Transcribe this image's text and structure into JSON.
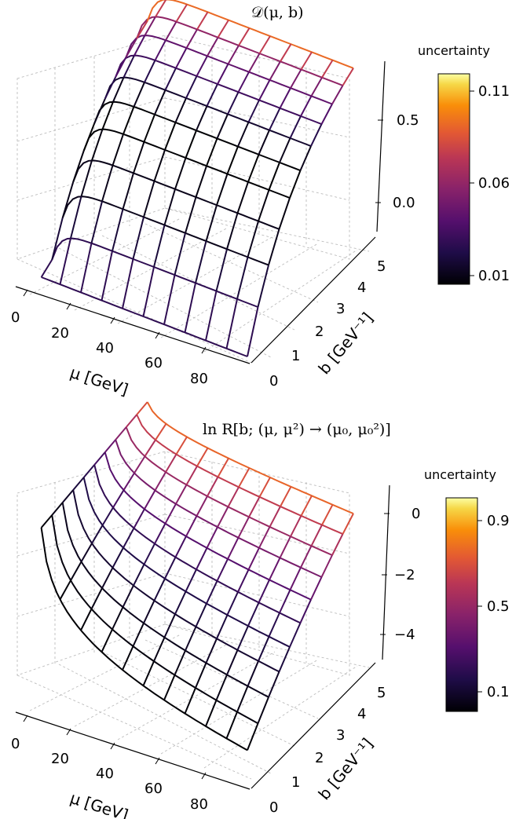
{
  "chart_data": [
    {
      "type": "surface",
      "title": "𝒟(μ, b)",
      "xlabel": "μ [GeV]",
      "ylabel": "b [GeV⁻¹]",
      "zlabel": "",
      "x_ticks": [
        "0",
        "20",
        "40",
        "60",
        "80"
      ],
      "y_ticks": [
        "0",
        "1",
        "2",
        "3",
        "4",
        "5"
      ],
      "z_ticks": [
        "0.0",
        "0.5"
      ],
      "xlim": [
        0,
        100
      ],
      "ylim": [
        0,
        5
      ],
      "grid": true,
      "colormap": "inferno",
      "colorbar": {
        "label": "uncertainty",
        "ticks": [
          "0.01",
          "0.06",
          "0.11"
        ],
        "range": [
          0.01,
          0.115
        ]
      },
      "mu_values": [
        1,
        10,
        20,
        30,
        40,
        50,
        60,
        70,
        80,
        90,
        100
      ],
      "b_values": [
        0,
        0.5,
        1,
        1.5,
        2,
        2.5,
        3,
        3.5,
        4,
        4.5,
        5
      ],
      "surface_description": "D rises from about -0.3 at b=0 to about 0.8 at b=5, weakly dependent on mu except near mu→0",
      "line_uncertainty_by_b": [
        0.03,
        0.03,
        0.015,
        0.015,
        0.01,
        0.01,
        0.02,
        0.035,
        0.045,
        0.06,
        0.09
      ]
    },
    {
      "type": "surface",
      "title": "ln R[b; (μ, μ²) → (μ₀, μ₀²)]",
      "xlabel": "μ [GeV]",
      "ylabel": "b [GeV⁻¹]",
      "zlabel": "",
      "x_ticks": [
        "0",
        "20",
        "40",
        "60",
        "80"
      ],
      "y_ticks": [
        "0",
        "1",
        "2",
        "3",
        "4",
        "5"
      ],
      "z_ticks": [
        "−4",
        "−2",
        "0"
      ],
      "xlim": [
        0,
        100
      ],
      "ylim": [
        0,
        5
      ],
      "grid": true,
      "colormap": "inferno",
      "colorbar": {
        "label": "uncertainty",
        "ticks": [
          "0.1",
          "0.5",
          "0.9"
        ],
        "range": [
          0.0,
          1.0
        ]
      },
      "mu_values": [
        1,
        10,
        20,
        30,
        40,
        50,
        60,
        70,
        80,
        90,
        100
      ],
      "b_values": [
        0,
        0.5,
        1,
        1.5,
        2,
        2.5,
        3,
        3.5,
        4,
        4.5,
        5
      ],
      "surface_description": "ln R is near 0 at small mu, dips to about -5 at large mu and small b, with uncertainty growing with b",
      "line_uncertainty_by_b": [
        0.0,
        0.02,
        0.05,
        0.1,
        0.15,
        0.2,
        0.3,
        0.4,
        0.5,
        0.62,
        0.75
      ]
    }
  ]
}
